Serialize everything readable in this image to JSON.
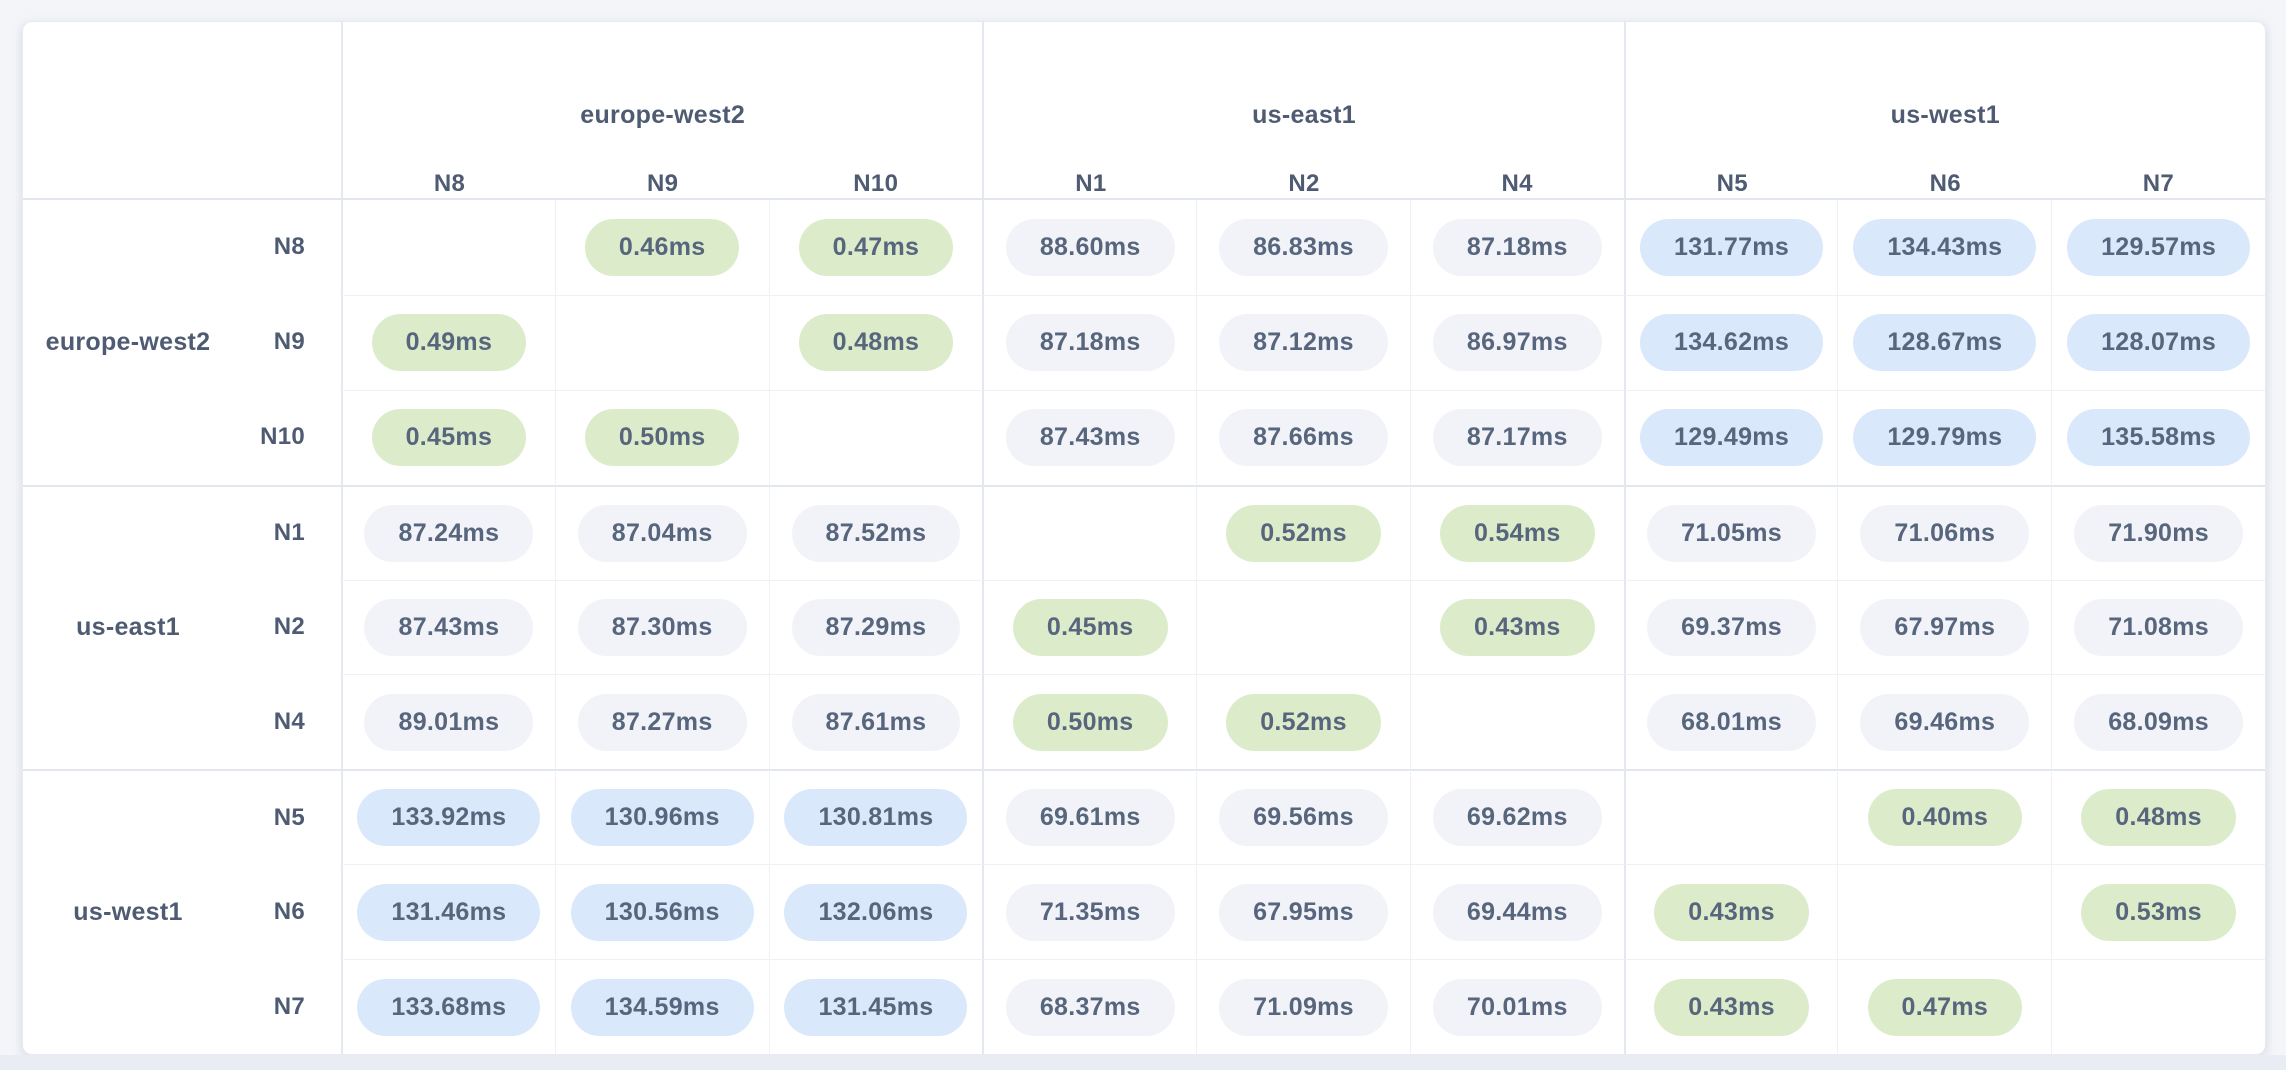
{
  "unit": "ms",
  "colors": {
    "page_background": "#f3f5f9",
    "card_background": "#ffffff",
    "pill_green": "#dcecca",
    "pill_gray": "#f1f3f8",
    "pill_blue": "#d9e8fa",
    "value_text": "#57657d",
    "header_text": "#4e5b72"
  },
  "table": {
    "col_groups": [
      {
        "label": "europe-west2",
        "cols": [
          "N8",
          "N9",
          "N10"
        ]
      },
      {
        "label": "us-east1",
        "cols": [
          "N1",
          "N2",
          "N4"
        ]
      },
      {
        "label": "us-west1",
        "cols": [
          "N5",
          "N6",
          "N7"
        ]
      }
    ],
    "row_groups": [
      {
        "label": "europe-west2",
        "rows": [
          "N8",
          "N9",
          "N10"
        ]
      },
      {
        "label": "us-east1",
        "rows": [
          "N1",
          "N2",
          "N4"
        ]
      },
      {
        "label": "us-west1",
        "rows": [
          "N5",
          "N6",
          "N7"
        ]
      }
    ]
  },
  "chart_data": {
    "type": "heatmap",
    "unit": "ms",
    "col_group_labels": [
      "europe-west2",
      "us-east1",
      "us-west1"
    ],
    "row_group_labels": [
      "europe-west2",
      "us-east1",
      "us-west1"
    ],
    "col_labels": [
      "N8",
      "N9",
      "N10",
      "N1",
      "N2",
      "N4",
      "N5",
      "N6",
      "N7"
    ],
    "row_labels": [
      "N8",
      "N9",
      "N10",
      "N1",
      "N2",
      "N4",
      "N5",
      "N6",
      "N7"
    ],
    "values": [
      [
        null,
        0.46,
        0.47,
        88.6,
        86.83,
        87.18,
        131.77,
        134.43,
        129.57
      ],
      [
        0.49,
        null,
        0.48,
        87.18,
        87.12,
        86.97,
        134.62,
        128.67,
        128.07
      ],
      [
        0.45,
        0.5,
        null,
        87.43,
        87.66,
        87.17,
        129.49,
        129.79,
        135.58
      ],
      [
        87.24,
        87.04,
        87.52,
        null,
        0.52,
        0.54,
        71.05,
        71.06,
        71.9
      ],
      [
        87.43,
        87.3,
        87.29,
        0.45,
        null,
        0.43,
        69.37,
        67.97,
        71.08
      ],
      [
        89.01,
        87.27,
        87.61,
        0.5,
        0.52,
        null,
        68.01,
        69.46,
        68.09
      ],
      [
        133.92,
        130.96,
        130.81,
        69.61,
        69.56,
        69.62,
        null,
        0.4,
        0.48
      ],
      [
        131.46,
        130.56,
        132.06,
        71.35,
        67.95,
        69.44,
        0.43,
        null,
        0.53
      ],
      [
        133.68,
        134.59,
        131.45,
        68.37,
        71.09,
        70.01,
        0.43,
        0.47,
        null
      ]
    ],
    "color_rule": {
      "green_below": 1,
      "blue_at_or_above": 100,
      "gray": "otherwise"
    }
  }
}
